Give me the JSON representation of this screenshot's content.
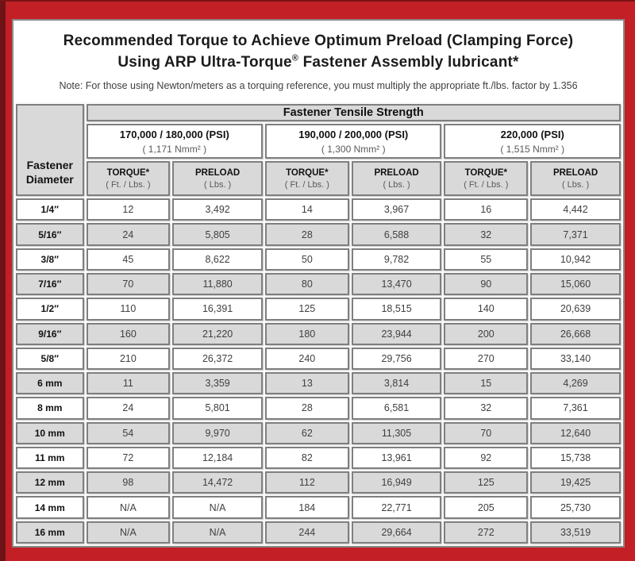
{
  "colors": {
    "frame_red": "#c22026",
    "frame_dark_edge": "#6e1316",
    "header_gray": "#d9d9d9",
    "cell_border_gray": "#7f7f7f"
  },
  "title": {
    "line1": "Recommended Torque to Achieve Optimum Preload (Clamping Force)",
    "line2_pre": "Using ARP Ultra-Torque",
    "line2_sup": "®",
    "line2_post": " Fastener Assembly lubricant*",
    "note": "Note: For those using Newton/meters as a torquing reference, you must multiply the appropriate ft./lbs. factor by 1.356"
  },
  "table": {
    "tensile_header": "Fastener Tensile Strength",
    "diameter_header": "Fastener Diameter",
    "groups": [
      {
        "psi": "170,000 / 180,000 (PSI)",
        "nmm": "( 1,171 Nmm² )"
      },
      {
        "psi": "190,000 / 200,000 (PSI)",
        "nmm": "( 1,300 Nmm² )"
      },
      {
        "psi": "220,000 (PSI)",
        "nmm": "( 1,515 Nmm² )"
      }
    ],
    "col_headers": {
      "torque": {
        "label": "TORQUE*",
        "sub": "( Ft. / Lbs. )"
      },
      "preload": {
        "label": "PRELOAD",
        "sub": "( Lbs. )"
      }
    },
    "rows": [
      [
        "1/4″",
        "12",
        "3,492",
        "14",
        "3,967",
        "16",
        "4,442"
      ],
      [
        "5/16″",
        "24",
        "5,805",
        "28",
        "6,588",
        "32",
        "7,371"
      ],
      [
        "3/8″",
        "45",
        "8,622",
        "50",
        "9,782",
        "55",
        "10,942"
      ],
      [
        "7/16″",
        "70",
        "11,880",
        "80",
        "13,470",
        "90",
        "15,060"
      ],
      [
        "1/2″",
        "110",
        "16,391",
        "125",
        "18,515",
        "140",
        "20,639"
      ],
      [
        "9/16″",
        "160",
        "21,220",
        "180",
        "23,944",
        "200",
        "26,668"
      ],
      [
        "5/8″",
        "210",
        "26,372",
        "240",
        "29,756",
        "270",
        "33,140"
      ],
      [
        "6 mm",
        "11",
        "3,359",
        "13",
        "3,814",
        "15",
        "4,269"
      ],
      [
        "8 mm",
        "24",
        "5,801",
        "28",
        "6,581",
        "32",
        "7,361"
      ],
      [
        "10 mm",
        "54",
        "9,970",
        "62",
        "11,305",
        "70",
        "12,640"
      ],
      [
        "11 mm",
        "72",
        "12,184",
        "82",
        "13,961",
        "92",
        "15,738"
      ],
      [
        "12 mm",
        "98",
        "14,472",
        "112",
        "16,949",
        "125",
        "19,425"
      ],
      [
        "14 mm",
        "N/A",
        "N/A",
        "184",
        "22,771",
        "205",
        "25,730"
      ],
      [
        "16 mm",
        "N/A",
        "N/A",
        "244",
        "29,664",
        "272",
        "33,519"
      ]
    ]
  }
}
